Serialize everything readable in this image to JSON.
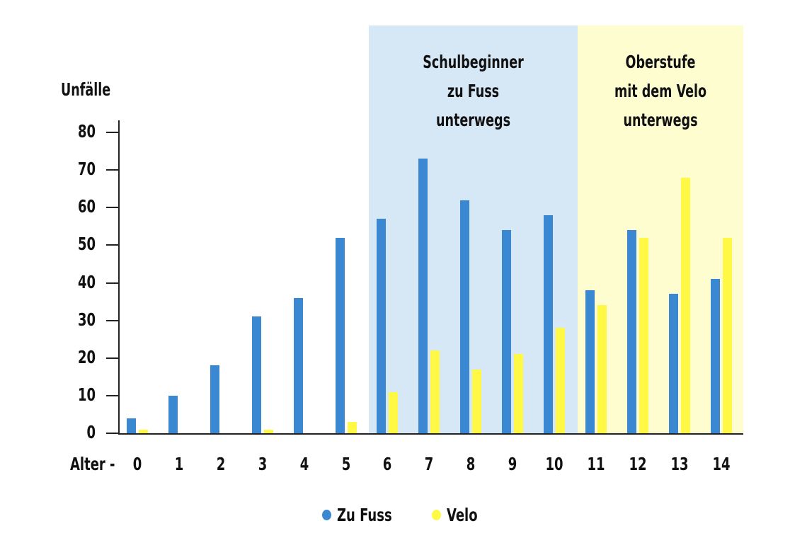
{
  "chart_data": {
    "type": "bar",
    "title": "",
    "ylabel": "Unfälle",
    "xlabel": "Alter -",
    "ylim": [
      0,
      80
    ],
    "yticks": [
      0,
      10,
      20,
      30,
      40,
      50,
      60,
      70,
      80
    ],
    "categories": [
      "0",
      "1",
      "2",
      "3",
      "4",
      "5",
      "6",
      "7",
      "8",
      "9",
      "10",
      "11",
      "12",
      "13",
      "14"
    ],
    "series": [
      {
        "name": "Zu Fuss",
        "color": "#3a88d2",
        "values": [
          4,
          10,
          18,
          31,
          36,
          52,
          57,
          73,
          62,
          54,
          58,
          38,
          54,
          37,
          41
        ]
      },
      {
        "name": "Velo",
        "color": "#fff945",
        "values": [
          1,
          0,
          0,
          1,
          0,
          3,
          11,
          22,
          17,
          21,
          28,
          34,
          52,
          68,
          52
        ]
      }
    ],
    "regions": [
      {
        "label_lines": [
          "Schulbeginner",
          "zu Fuss",
          "unterwegs"
        ],
        "from_category": "6",
        "to_category": "10",
        "color": "#d6e7f5"
      },
      {
        "label_lines": [
          "Oberstufe",
          "mit dem Velo",
          "unterwegs"
        ],
        "from_category": "11",
        "to_category": "14",
        "color": "#fefdcf"
      }
    ],
    "legend_position": "bottom",
    "grid": false
  },
  "legend": {
    "items": [
      {
        "label": "Zu Fuss",
        "color": "#3a88d2"
      },
      {
        "label": "Velo",
        "color": "#fff945"
      }
    ]
  },
  "axis": {
    "ylabel": "Unfälle",
    "xlabel": "Alter -"
  }
}
